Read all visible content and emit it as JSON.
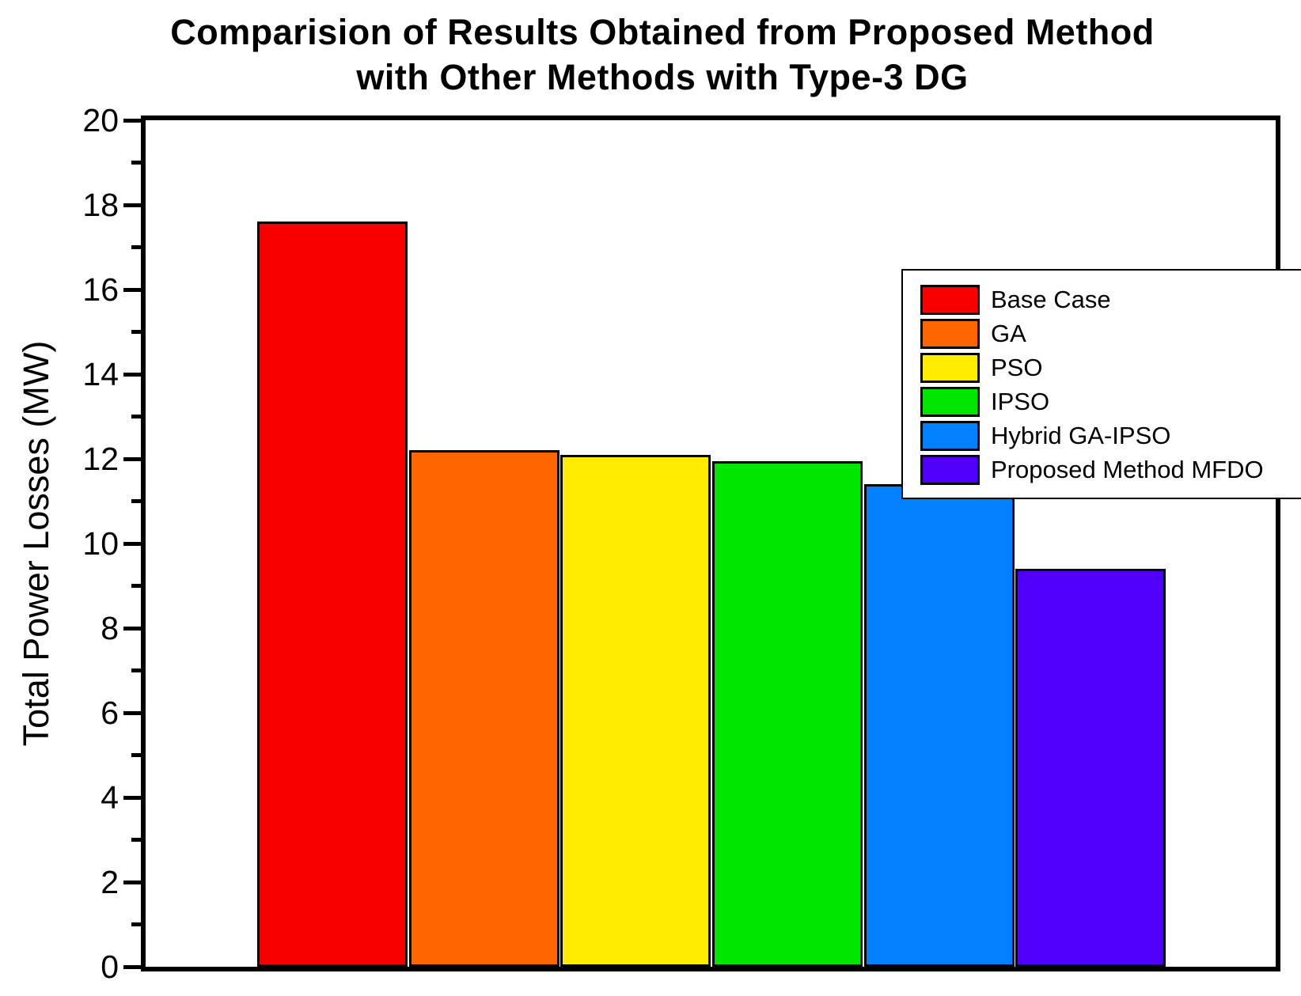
{
  "title": {
    "line1": "Comparision of Results Obtained from Proposed Method",
    "line2": "with Other Methods with Type-3 DG"
  },
  "chart_data": {
    "type": "bar",
    "title": "Comparision of Results Obtained from Proposed Method with Other Methods with Type-3 DG",
    "categories": [
      "Base Case",
      "GA",
      "PSO",
      "IPSO",
      "Hybrid GA-IPSO",
      "Proposed Method MFDO"
    ],
    "values": [
      17.6,
      12.2,
      12.1,
      11.95,
      11.4,
      9.4
    ],
    "colors": [
      "#FB0000",
      "#FF6600",
      "#FFEC00",
      "#00E600",
      "#0080FF",
      "#5000FA"
    ],
    "bar_border_color": "#000000",
    "xlabel": "",
    "ylabel": "Total Power Losses (MW)",
    "ylim": [
      0,
      20
    ],
    "yticks": [
      0,
      2,
      4,
      6,
      8,
      10,
      12,
      14,
      16,
      18,
      20
    ],
    "ytick_minor_step": 1,
    "grid": false,
    "legend_position": "upper right",
    "legend_entries": [
      "Base Case",
      "GA",
      "PSO",
      "IPSO",
      "Hybrid GA-IPSO",
      "Proposed Method MFDO"
    ]
  }
}
